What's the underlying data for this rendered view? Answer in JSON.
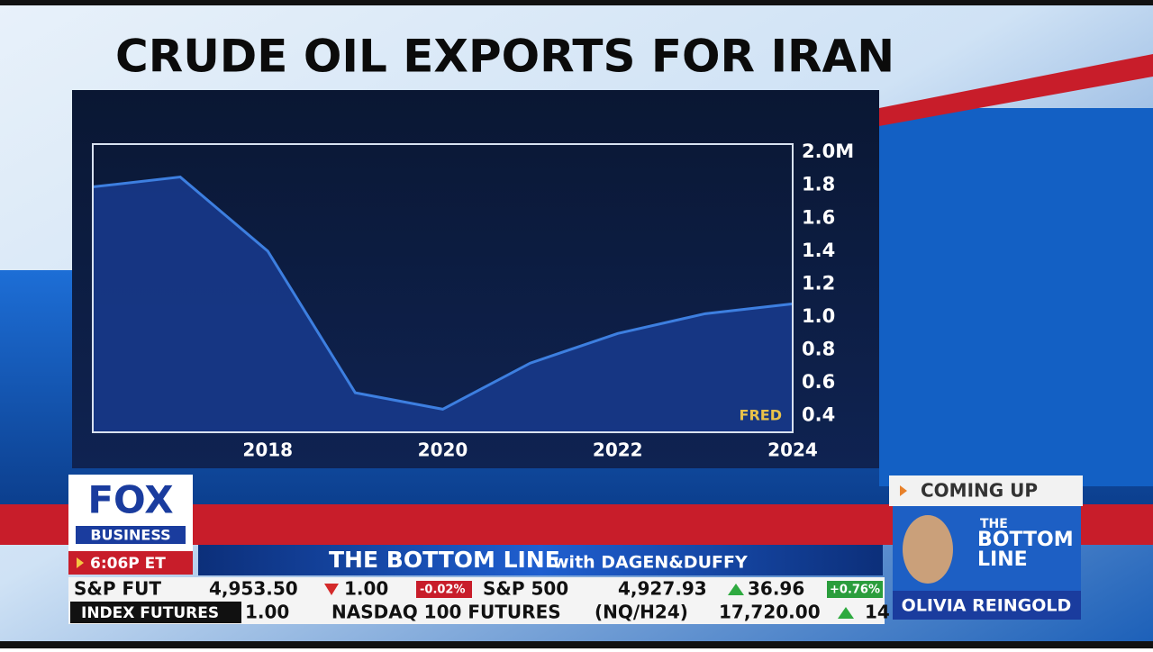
{
  "chart_data": {
    "type": "area",
    "title": "CRUDE OIL EXPORTS FOR IRAN",
    "x": [
      2016,
      2017,
      2018,
      2019,
      2020,
      2021,
      2022,
      2023,
      2024
    ],
    "values": [
      1.79,
      1.85,
      1.4,
      0.54,
      0.44,
      0.72,
      0.9,
      1.02,
      1.08
    ],
    "color": "#3d7fe0",
    "xlim": [
      2016,
      2024
    ],
    "xticks": [
      2018,
      2020,
      2022,
      2024
    ],
    "ylim": [
      0.3,
      2.05
    ],
    "yticks": [
      0.4,
      0.6,
      0.8,
      {
        "value": 1,
        "label": "1.0"
      },
      1.2,
      1.4,
      1.6,
      1.8,
      {
        "value": 2,
        "label": "2.0M"
      }
    ],
    "source": "FRED"
  },
  "ui": {
    "logo_top": "FOX",
    "logo_bottom": "BUSINESS",
    "time": "6:06P ET",
    "show_title": "THE BOTTOM LINE",
    "show_hosts": "with DAGEN&DUFFY",
    "coming_up": "COMING UP",
    "promo_line1": "THE",
    "promo_line2": "BOTTOM",
    "promo_line3": "LINE",
    "guest": "OLIVIA REINGOLD",
    "ticker_row1": [
      "S&P FUT",
      "4,953.50",
      "1.00",
      "-0.02%",
      "S&P 500",
      "4,927.93",
      "36.96",
      "+0.76%"
    ],
    "ticker_row2": [
      "INDEX FUTURES",
      "1.00",
      "NASDAQ 100 FUTURES",
      "(NQ/H24)",
      "17,720.00",
      "14"
    ]
  }
}
